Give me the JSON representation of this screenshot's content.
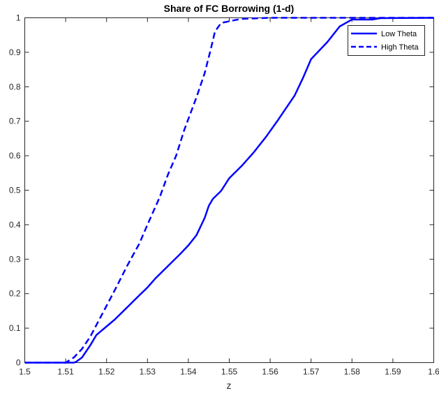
{
  "chart_data": {
    "type": "line",
    "title": "Share of FC Borrowing (1-d)",
    "xlabel": "z",
    "ylabel": "",
    "xlim": [
      1.5,
      1.6
    ],
    "ylim": [
      0,
      1
    ],
    "xticks": [
      1.5,
      1.51,
      1.52,
      1.53,
      1.54,
      1.55,
      1.56,
      1.57,
      1.58,
      1.59,
      1.6
    ],
    "xtick_labels": [
      "1.5",
      "1.51",
      "1.52",
      "1.53",
      "1.54",
      "1.55",
      "1.56",
      "1.57",
      "1.58",
      "1.59",
      "1.6"
    ],
    "yticks": [
      0,
      0.1,
      0.2,
      0.3,
      0.4,
      0.5,
      0.6,
      0.7,
      0.8,
      0.9,
      1
    ],
    "ytick_labels": [
      "0",
      "0.1",
      "0.2",
      "0.3",
      "0.4",
      "0.5",
      "0.6",
      "0.7",
      "0.8",
      "0.9",
      "1"
    ],
    "grid": false,
    "box": true,
    "legend": {
      "position": "top-right"
    },
    "series": [
      {
        "name": "Low Theta",
        "style": "solid",
        "color": "#0000ff",
        "points": [
          [
            1.5,
            0
          ],
          [
            1.512,
            0
          ],
          [
            1.5125,
            0.002
          ],
          [
            1.514,
            0.015
          ],
          [
            1.516,
            0.05
          ],
          [
            1.5175,
            0.08
          ],
          [
            1.52,
            0.105
          ],
          [
            1.522,
            0.125
          ],
          [
            1.525,
            0.16
          ],
          [
            1.528,
            0.195
          ],
          [
            1.53,
            0.218
          ],
          [
            1.532,
            0.245
          ],
          [
            1.535,
            0.28
          ],
          [
            1.538,
            0.315
          ],
          [
            1.54,
            0.34
          ],
          [
            1.542,
            0.37
          ],
          [
            1.544,
            0.42
          ],
          [
            1.545,
            0.455
          ],
          [
            1.546,
            0.475
          ],
          [
            1.548,
            0.498
          ],
          [
            1.55,
            0.535
          ],
          [
            1.553,
            0.57
          ],
          [
            1.556,
            0.61
          ],
          [
            1.559,
            0.655
          ],
          [
            1.562,
            0.705
          ],
          [
            1.566,
            0.775
          ],
          [
            1.568,
            0.825
          ],
          [
            1.57,
            0.88
          ],
          [
            1.574,
            0.93
          ],
          [
            1.577,
            0.975
          ],
          [
            1.58,
            0.995
          ],
          [
            1.585,
            0.995
          ],
          [
            1.587,
            0.999
          ],
          [
            1.6,
            1
          ]
        ]
      },
      {
        "name": "High Theta",
        "style": "dashed",
        "color": "#0000ff",
        "points": [
          [
            1.5,
            0
          ],
          [
            1.51,
            0
          ],
          [
            1.512,
            0.015
          ],
          [
            1.514,
            0.04
          ],
          [
            1.516,
            0.075
          ],
          [
            1.518,
            0.12
          ],
          [
            1.52,
            0.165
          ],
          [
            1.522,
            0.21
          ],
          [
            1.525,
            0.28
          ],
          [
            1.528,
            0.345
          ],
          [
            1.53,
            0.4
          ],
          [
            1.533,
            0.48
          ],
          [
            1.535,
            0.545
          ],
          [
            1.537,
            0.6
          ],
          [
            1.539,
            0.675
          ],
          [
            1.542,
            0.77
          ],
          [
            1.544,
            0.84
          ],
          [
            1.5455,
            0.91
          ],
          [
            1.5465,
            0.96
          ],
          [
            1.548,
            0.985
          ],
          [
            1.55,
            0.99
          ],
          [
            1.553,
            0.997
          ],
          [
            1.56,
            1
          ],
          [
            1.6,
            1
          ]
        ]
      }
    ]
  }
}
